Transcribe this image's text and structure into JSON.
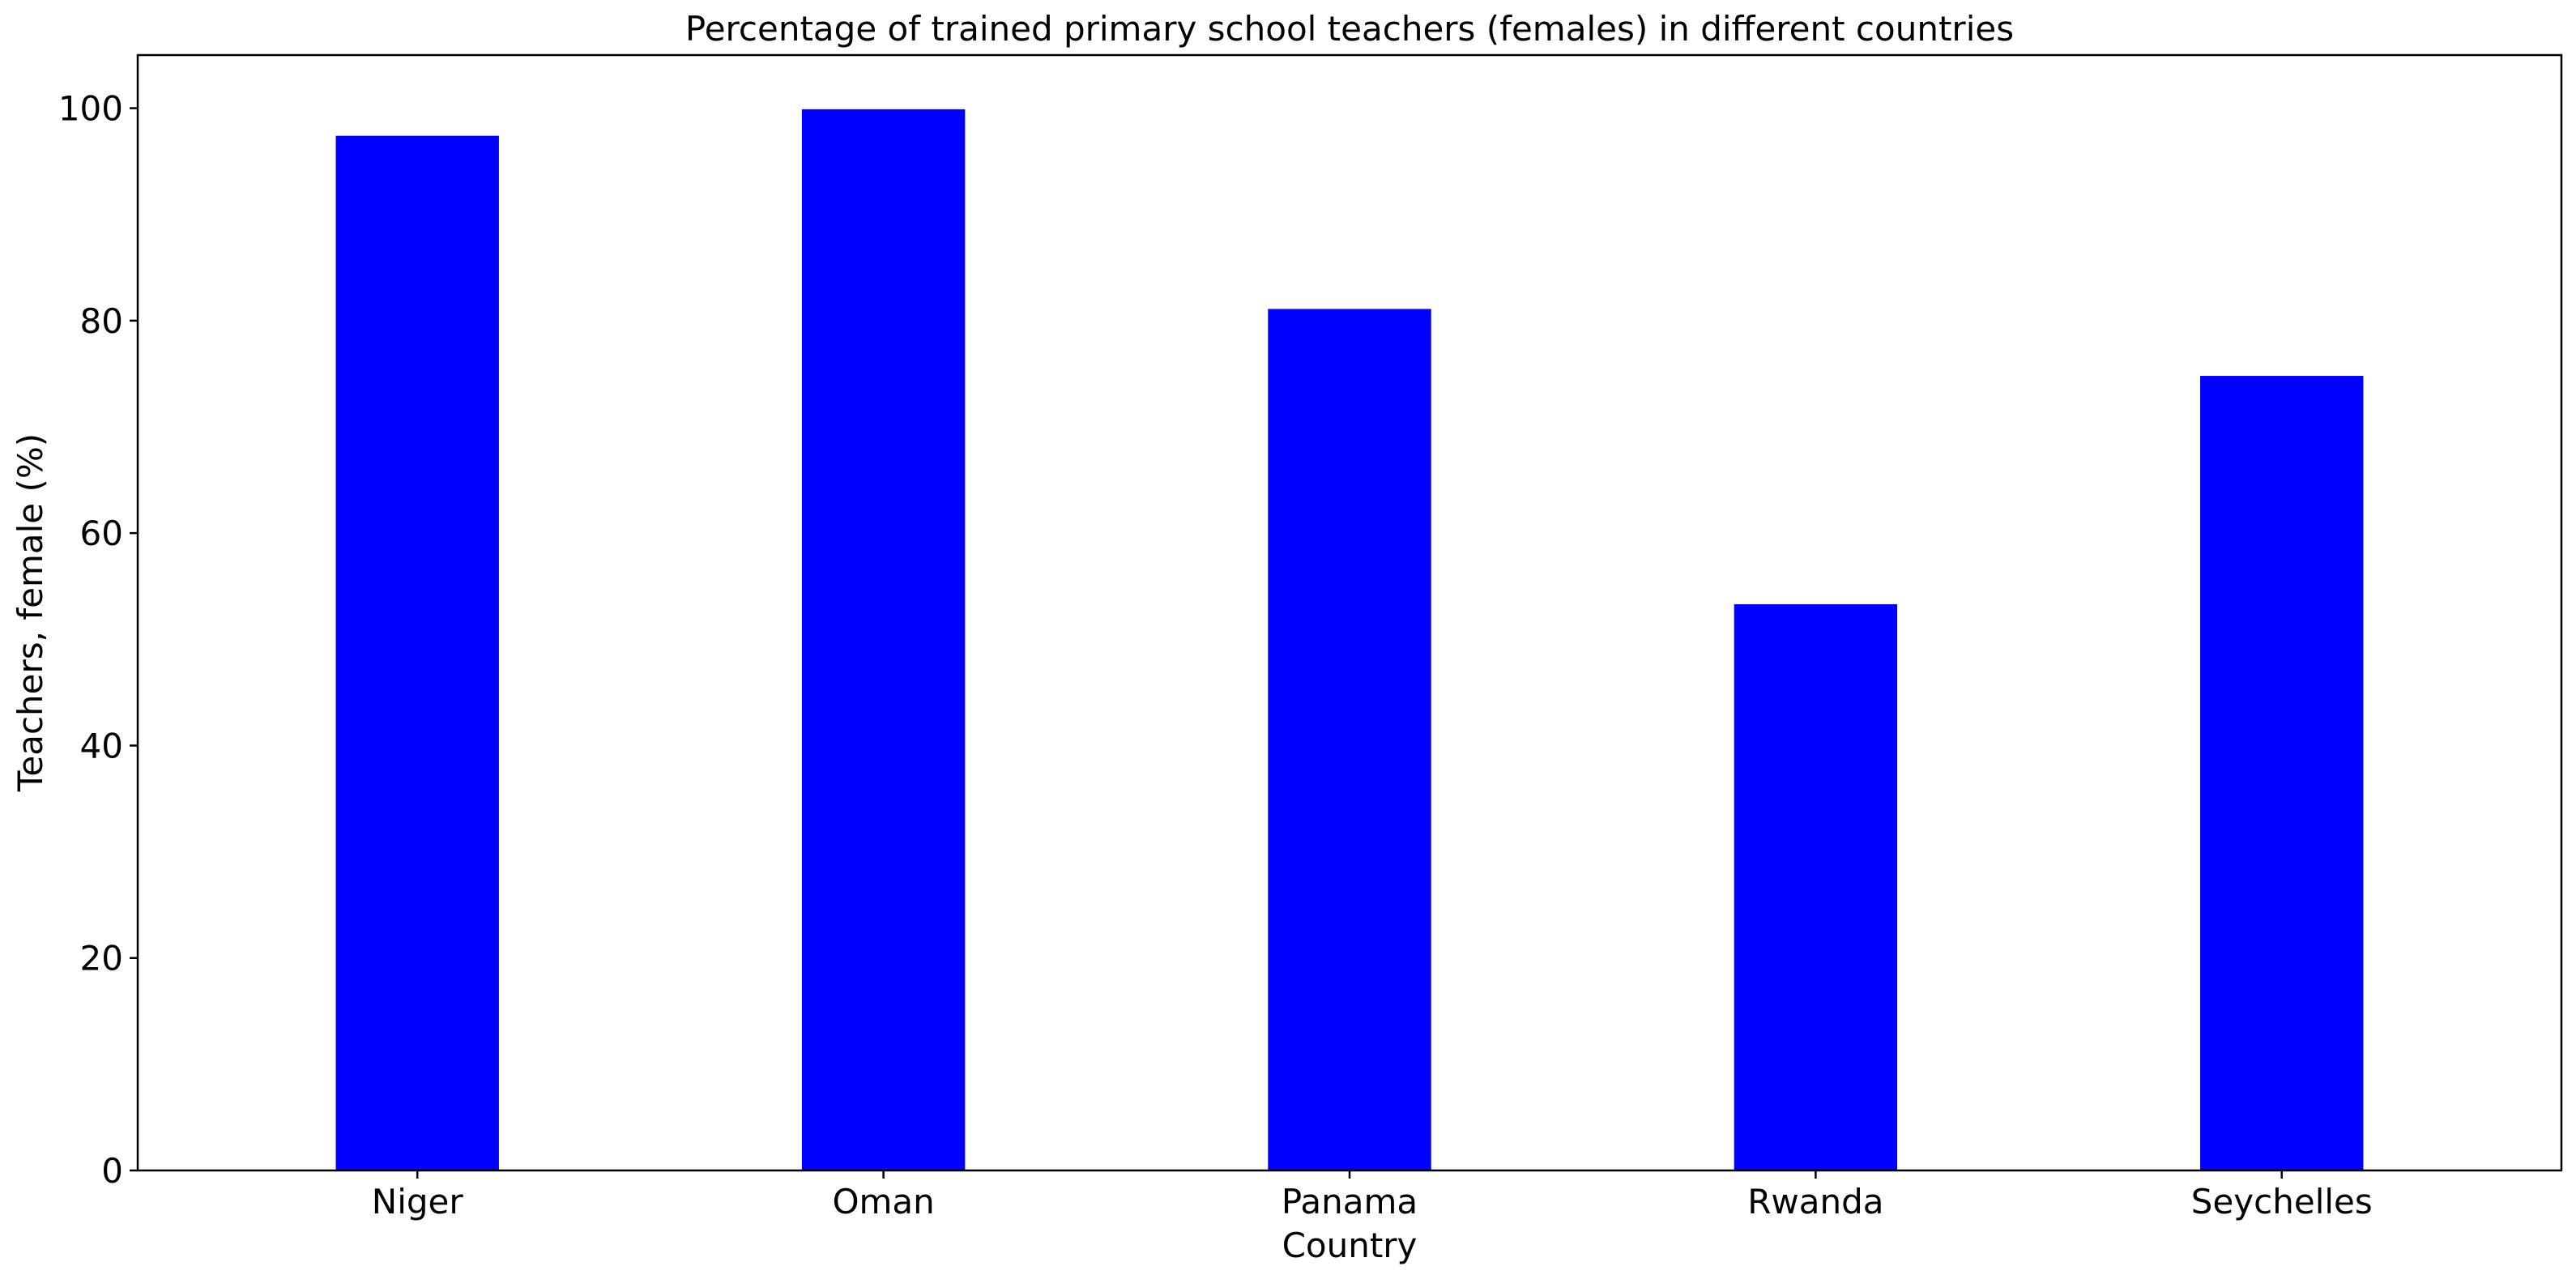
{
  "chart_data": {
    "type": "bar",
    "title": "Percentage of trained primary school teachers (females) in different countries",
    "xlabel": "Country",
    "ylabel": "Teachers, female (%)",
    "categories": [
      "Niger",
      "Oman",
      "Panama",
      "Rwanda",
      "Seychelles"
    ],
    "values": [
      97.4,
      99.9,
      81.1,
      53.3,
      74.8
    ],
    "ylim": [
      0,
      105
    ],
    "yticks": [
      0,
      20,
      40,
      60,
      80,
      100
    ],
    "grid": false,
    "legend": "none",
    "bar_color": "#0000ff"
  }
}
